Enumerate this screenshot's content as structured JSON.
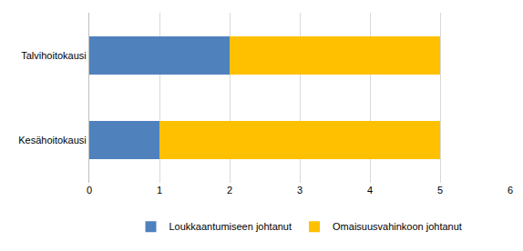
{
  "chart_data": {
    "type": "bar",
    "orientation": "horizontal",
    "stacked": true,
    "categories": [
      "Kesähoitokausi",
      "Talvihoitokausi"
    ],
    "series": [
      {
        "name": "Loukkaantumiseen johtanut",
        "color": "#4f81bd",
        "values": [
          1,
          2
        ]
      },
      {
        "name": "Omaisuusvahinkoon johtanut",
        "color": "#ffc000",
        "values": [
          4,
          3
        ]
      }
    ],
    "xlim": [
      0,
      6
    ],
    "xticks": [
      0,
      1,
      2,
      3,
      4,
      5,
      6
    ],
    "grid": true,
    "legend": "bottom"
  }
}
